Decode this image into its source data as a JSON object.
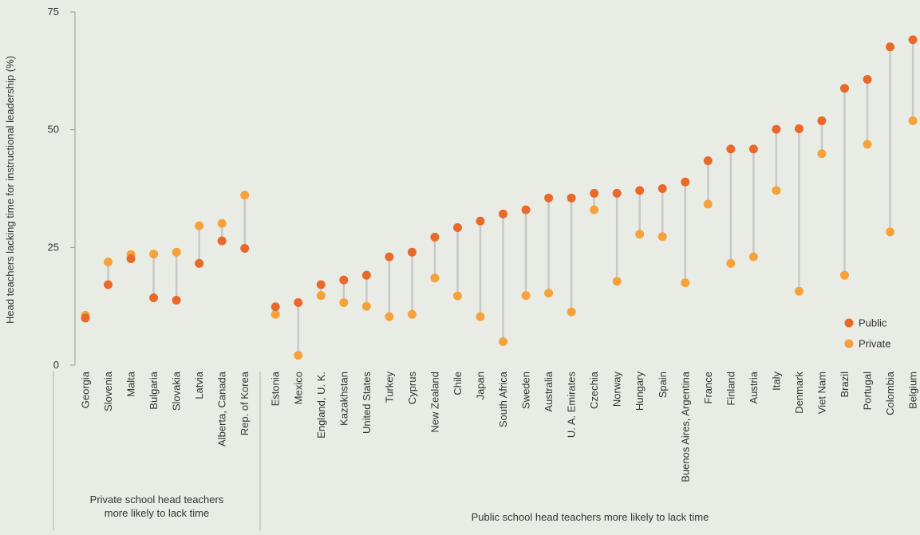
{
  "chart_data": {
    "type": "scatter",
    "title": "",
    "xlabel": "",
    "ylabel": "Head teachers lacking time for instructional leadership (%)",
    "ylim": [
      0,
      75
    ],
    "yticks": [
      0,
      25,
      50,
      75
    ],
    "grid": false,
    "legend_position": "bottom-right",
    "colors": {
      "public": "#e8692a",
      "private": "#f6a23a",
      "connector": "#c8c8c8"
    },
    "series": [
      {
        "key": "public",
        "name": "Public"
      },
      {
        "key": "private",
        "name": "Private"
      }
    ],
    "groups": [
      {
        "label_lines": [
          "Private school head teachers",
          "more likely to lack time"
        ],
        "categories": [
          "Georgia",
          "Slovenia",
          "Malta",
          "Bulgaria",
          "Slovakia",
          "Latvia",
          "Alberta, Canada",
          "Rep. of Korea"
        ],
        "public": [
          10.0,
          17.1,
          22.6,
          14.3,
          13.8,
          21.6,
          26.4,
          24.8
        ],
        "private": [
          10.6,
          21.9,
          23.5,
          23.6,
          24.0,
          29.6,
          30.1,
          36.1
        ]
      },
      {
        "label_lines": [
          "Public school head teachers more likely to lack time"
        ],
        "categories": [
          "Estonia",
          "Mexico",
          "England, U. K.",
          "Kazakhstan",
          "United States",
          "Turkey",
          "Cyprus",
          "New Zealand",
          "Chile",
          "Japan",
          "South Africa",
          "Sweden",
          "Australia",
          "U. A. Emirates",
          "Czechia",
          "Norway",
          "Hungary",
          "Spain",
          "Buenos Aires, Argentina",
          "France",
          "Finland",
          "Austria",
          "Italy",
          "Denmark",
          "Viet Nam",
          "Brazil",
          "Portugal",
          "Colombia",
          "Belgium"
        ],
        "public": [
          12.4,
          13.3,
          17.1,
          18.1,
          19.1,
          23.0,
          24.0,
          27.2,
          29.2,
          30.6,
          32.1,
          33.0,
          35.5,
          35.5,
          36.5,
          36.5,
          37.1,
          37.5,
          38.9,
          43.4,
          45.9,
          45.9,
          50.1,
          50.2,
          51.9,
          58.8,
          60.7,
          67.6,
          69.1
        ],
        "private": [
          10.8,
          2.1,
          14.8,
          13.3,
          12.5,
          10.3,
          10.8,
          18.5,
          14.7,
          10.3,
          5.0,
          14.8,
          15.3,
          11.3,
          33.0,
          17.8,
          27.8,
          27.3,
          17.5,
          34.2,
          21.6,
          23.0,
          37.1,
          15.7,
          44.9,
          19.1,
          46.9,
          28.3,
          51.9
        ]
      }
    ]
  }
}
